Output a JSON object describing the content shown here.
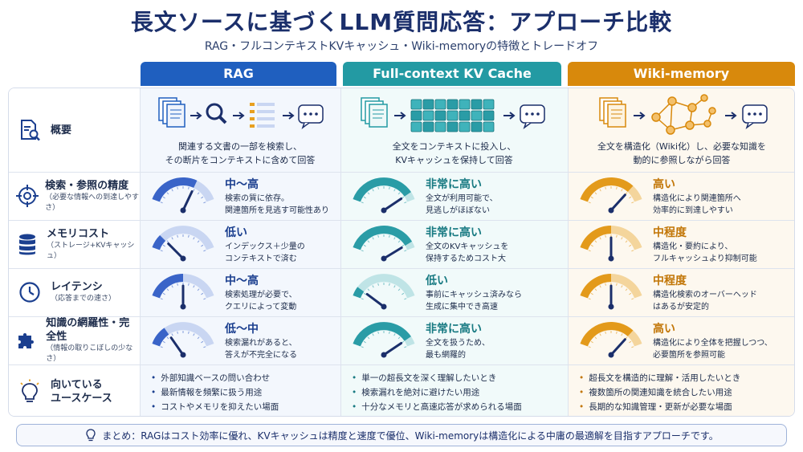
{
  "title": "長文ソースに基づくLLM質問応答：アプローチ比較",
  "subtitle": "RAG・フルコンテキストKVキャッシュ・Wiki-memoryの特徴とトレードオフ",
  "columns": [
    {
      "name": "RAG",
      "color": "#1f5fbf",
      "light": "#f3f7fd",
      "gauge_fill": "#3a64c8",
      "gauge_track": "#c9d6f2",
      "level_color": "#1b3f8f",
      "bullet_color": "#1b3f8f"
    },
    {
      "name": "Full-context KV Cache",
      "color": "#239aa3",
      "light": "#f1fafa",
      "gauge_fill": "#2a9ca6",
      "gauge_track": "#bfe4e6",
      "level_color": "#187a82",
      "bullet_color": "#187a82"
    },
    {
      "name": "Wiki-memory",
      "color": "#d8890c",
      "light": "#fdf8ef",
      "gauge_fill": "#e39a1b",
      "gauge_track": "#f4d59c",
      "level_color": "#c27607",
      "bullet_color": "#c27607"
    }
  ],
  "overview": {
    "label": "概要",
    "icon": "document-search-icon",
    "captions": [
      [
        "関連する文書の一部を検索し、",
        "その断片をコンテキストに含めて回答"
      ],
      [
        "全文をコンテキストに投入し、",
        "KVキャッシュを保持して回答"
      ],
      [
        "全文を構造化（Wiki化）し、必要な知識を",
        "動的に参照しながら回答"
      ]
    ]
  },
  "metrics": [
    {
      "label": "検索・参照の精度",
      "sub": "（必要な情報への到達しやすさ）",
      "icon": "target-icon",
      "cells": [
        {
          "level": "中〜高",
          "value": 0.68,
          "desc": [
            "検索の質に依存。",
            "関連箇所を見逃す可能性あり"
          ]
        },
        {
          "level": "非常に高い",
          "value": 0.9,
          "desc": [
            "全文が利用可能で、",
            "見逃しがほぼない"
          ]
        },
        {
          "level": "高い",
          "value": 0.8,
          "desc": [
            "構造化により関連箇所へ",
            "効率的に到達しやすい"
          ]
        }
      ]
    },
    {
      "label": "メモリコスト",
      "sub": "（ストレージ+KVキャッシュ）",
      "icon": "database-icon",
      "cells": [
        {
          "level": "低い",
          "value": 0.18,
          "desc": [
            "インデックス＋少量の",
            "コンテキストで済む"
          ]
        },
        {
          "level": "非常に高い",
          "value": 0.92,
          "desc": [
            "全文のKVキャッシュを",
            "保持するためコスト大"
          ]
        },
        {
          "level": "中程度",
          "value": 0.5,
          "desc": [
            "構造化・要約により、",
            "フルキャッシュより抑制可能"
          ]
        }
      ]
    },
    {
      "label": "レイテンシ",
      "sub": "（応答までの速さ）",
      "icon": "clock-icon",
      "cells": [
        {
          "level": "中〜高",
          "value": 0.5,
          "desc": [
            "検索処理が必要で、",
            "クエリによって変動"
          ]
        },
        {
          "level": "低い",
          "value": 0.12,
          "desc": [
            "事前にキャッシュ済みなら",
            "生成に集中でき高速"
          ]
        },
        {
          "level": "中程度",
          "value": 0.5,
          "desc": [
            "構造化検索のオーバーヘッド",
            "はあるが安定的"
          ]
        }
      ]
    },
    {
      "label": "知識の網羅性・完全性",
      "sub": "（情報の取りこぼしの少なさ）",
      "icon": "puzzle-icon",
      "cells": [
        {
          "level": "低〜中",
          "value": 0.25,
          "desc": [
            "検索漏れがあると、",
            "答えが不完全になる"
          ]
        },
        {
          "level": "非常に高い",
          "value": 0.9,
          "desc": [
            "全文を扱うため、",
            "最も網羅的"
          ]
        },
        {
          "level": "高い",
          "value": 0.8,
          "desc": [
            "構造化により全体を把握しつつ、",
            "必要箇所を参照可能"
          ]
        }
      ]
    }
  ],
  "usecases": {
    "label": [
      "向いている",
      "ユースケース"
    ],
    "icon": "lightbulb-icon",
    "lists": [
      [
        "外部知識ベースの問い合わせ",
        "最新情報を頻繁に扱う用途",
        "コストやメモリを抑えたい場面"
      ],
      [
        "単一の超長文を深く理解したいとき",
        "検索漏れを絶対に避けたい用途",
        "十分なメモリと高速応答が求められる場面"
      ],
      [
        "超長文を構造的に理解・活用したいとき",
        "複数箇所の関連知識を統合したい用途",
        "長期的な知識管理・更新が必要な場面"
      ]
    ]
  },
  "summary": "まとめ：RAGはコスト効率に優れ、KVキャッシュは精度と速度で優位、Wiki-memoryは構造化による中庸の最適解を目指すアプローチです。"
}
